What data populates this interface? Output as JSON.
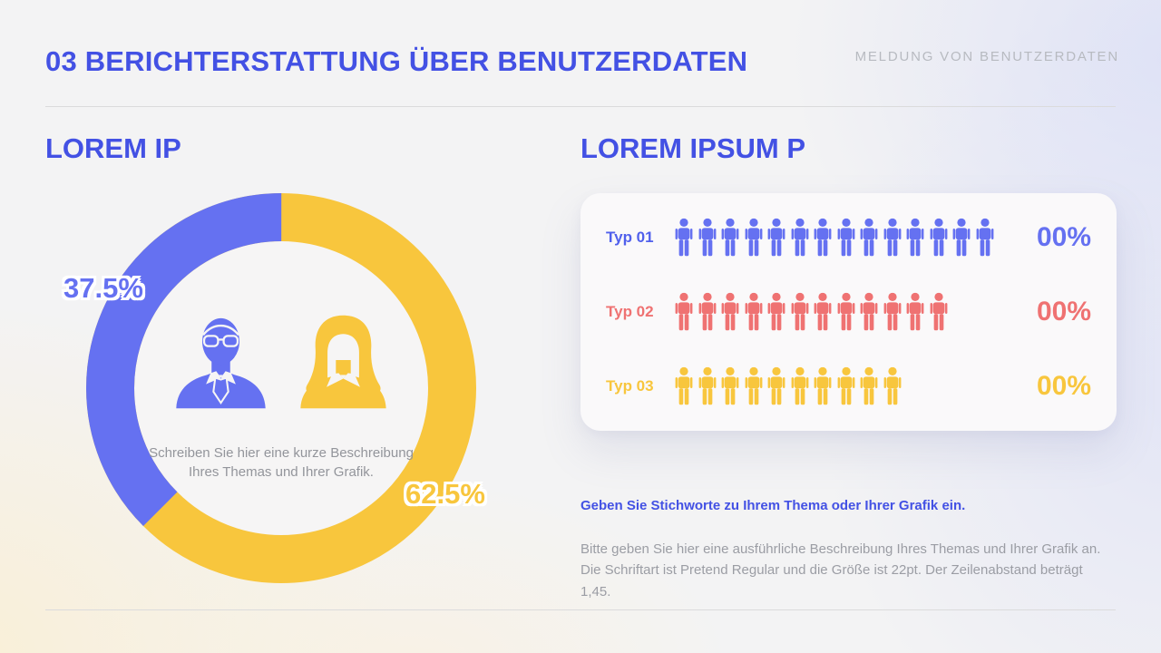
{
  "colors": {
    "brand": "#4351E4",
    "blue": "#6571F1",
    "blue_label": "#5060EC",
    "yellow": "#F8C63D",
    "red": "#EF7272",
    "caption": "#93959B",
    "body": "#9B9DA4",
    "muted": "#B7BAC0",
    "divider": "#DBDBDC",
    "card": "#FAF9FA",
    "hole": "#F6F5F5"
  },
  "header": {
    "title": "03 BERICHTERSTATTUNG ÜBER BENUTZERDATEN",
    "right_label": "MELDUNG VON BENUTZERDATEN"
  },
  "left": {
    "heading": "LOREM IP",
    "donut": {
      "segments": [
        {
          "label": "37.5%",
          "value": 37.5,
          "color": "#6571F1"
        },
        {
          "label": "62.5%",
          "value": 62.5,
          "color": "#F8C63D"
        }
      ],
      "center_caption": "Schreiben Sie hier eine kurze Beschreibung Ihres Themas und Ihrer Grafik.",
      "icons": [
        "businessman-icon",
        "businesswoman-icon"
      ]
    }
  },
  "right": {
    "heading": "LOREM IPSUM P",
    "rows": [
      {
        "label": "Typ 01",
        "count": 14,
        "value": "00%",
        "color": "#6571F1",
        "label_color": "#5060EC",
        "icon": "person-icon"
      },
      {
        "label": "Typ 02",
        "count": 12,
        "value": "00%",
        "color": "#EF7272",
        "label_color": "#EF7272",
        "icon": "person-icon"
      },
      {
        "label": "Typ 03",
        "count": 10,
        "value": "00%",
        "color": "#F8C63D",
        "label_color": "#F8C63D",
        "icon": "person-icon"
      }
    ],
    "keyword_line": "Geben Sie Stichworte zu Ihrem Thema oder Ihrer Grafik ein.",
    "description": "Bitte geben Sie hier eine ausführliche Beschreibung Ihres Themas und Ihrer Grafik an. Die Schriftart ist Pretend Regular und die Größe ist 22pt. Der Zeilenabstand beträgt 1,45."
  },
  "chart_data": [
    {
      "type": "pie",
      "title": "LOREM IP",
      "labels": [
        "37.5%",
        "62.5%"
      ],
      "values": [
        37.5,
        62.5
      ],
      "colors": [
        "#6571F1",
        "#F8C63D"
      ],
      "donut": true,
      "start": "top",
      "first_segment_direction": "counterclockwise",
      "annotations": [
        "Schreiben Sie hier eine kurze Beschreibung Ihres Themas und Ihrer Grafik."
      ]
    },
    {
      "type": "bar",
      "style": "pictograph",
      "title": "LOREM IPSUM P",
      "categories": [
        "Typ 01",
        "Typ 02",
        "Typ 03"
      ],
      "values": [
        14,
        12,
        10
      ],
      "value_labels": [
        "00%",
        "00%",
        "00%"
      ],
      "colors": [
        "#6571F1",
        "#EF7272",
        "#F8C63D"
      ],
      "legend_position": "none",
      "grid": false
    }
  ]
}
